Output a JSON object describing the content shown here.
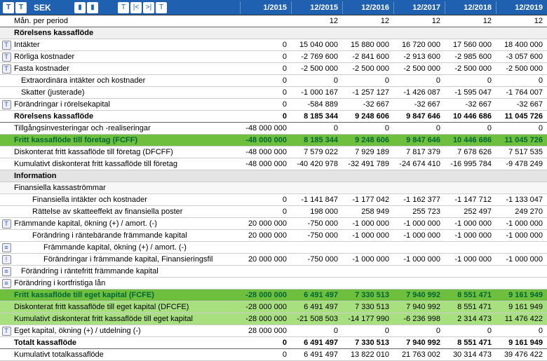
{
  "currency": "SEK",
  "header_icons_left": [
    "T",
    "T"
  ],
  "header_icons_mid_left": [
    "m",
    "m"
  ],
  "header_icons_mid": [
    "T",
    "|<",
    ">|",
    "T"
  ],
  "periods": [
    "1/2015",
    "12/2015",
    "12/2016",
    "12/2017",
    "12/2018",
    "12/2019"
  ],
  "rows": [
    {
      "cls": "mpp",
      "label": "Mån. per period",
      "vals": [
        "",
        "12",
        "12",
        "12",
        "12",
        "12"
      ]
    },
    {
      "cls": "section",
      "label": "Rörelsens kassaflöde",
      "vals": [
        "",
        "",
        "",
        "",
        "",
        ""
      ]
    },
    {
      "icon": "T",
      "label": "Intäkter",
      "vals": [
        "0",
        "15 040 000",
        "15 880 000",
        "16 720 000",
        "17 560 000",
        "18 400 000"
      ]
    },
    {
      "icon": "T",
      "label": "Rörliga kostnader",
      "vals": [
        "0",
        "-2 769 600",
        "-2 841 600",
        "-2 913 600",
        "-2 985 600",
        "-3 057 600"
      ]
    },
    {
      "icon": "T",
      "label": "Fasta kostnader",
      "vals": [
        "0",
        "-2 500 000",
        "-2 500 000",
        "-2 500 000",
        "-2 500 000",
        "-2 500 000"
      ]
    },
    {
      "label": "Extraordinära intäkter och kostnader",
      "indent": 1,
      "vals": [
        "0",
        "0",
        "0",
        "0",
        "0",
        "0"
      ]
    },
    {
      "label": "Skatter (justerade)",
      "indent": 1,
      "vals": [
        "0",
        "-1 000 167",
        "-1 257 127",
        "-1 426 087",
        "-1 595 047",
        "-1 764 007"
      ]
    },
    {
      "icon": "T",
      "label": "Förändringar i rörelsekapital",
      "vals": [
        "0",
        "-584 889",
        "-32 667",
        "-32 667",
        "-32 667",
        "-32 667"
      ]
    },
    {
      "cls": "subtotal",
      "label": "Rörelsens kassaflöde",
      "vals": [
        "0",
        "8 185 344",
        "9 248 606",
        "9 847 646",
        "10 446 686",
        "11 045 726"
      ]
    },
    {
      "label": "Tillgångsinvesteringar och -realiseringar",
      "vals": [
        "-48 000 000",
        "0",
        "0",
        "0",
        "0",
        "0"
      ]
    },
    {
      "cls": "fcff",
      "label": "Fritt kassaflöde  till företag (FCFF)",
      "vals": [
        "-48 000 000",
        "8 185 344",
        "9 248 606",
        "9 847 646",
        "10 446 686",
        "11 045 726"
      ]
    },
    {
      "label": "Diskonterat fritt kassaflöde  till företag (DFCFF)",
      "vals": [
        "-48 000 000",
        "7 579 022",
        "7 929 189",
        "7 817 379",
        "7 678 626",
        "7 517 535"
      ]
    },
    {
      "label": "Kumulativt diskonterat fritt kassaflöde till företag",
      "vals": [
        "-48 000 000",
        "-40 420 978",
        "-32 491 789",
        "-24 674 410",
        "-16 995 784",
        "-9 478 249"
      ]
    },
    {
      "cls": "info",
      "label": "Information",
      "vals": [
        "",
        "",
        "",
        "",
        "",
        ""
      ]
    },
    {
      "cls": "thin",
      "label": "Finansiella kassaströmmar",
      "vals": [
        "",
        "",
        "",
        "",
        "",
        ""
      ]
    },
    {
      "label": "Finansiella intäkter och kostnader",
      "indent": 2,
      "vals": [
        "0",
        "-1 141 847",
        "-1 177 042",
        "-1 162 377",
        "-1 147 712",
        "-1 133 047"
      ]
    },
    {
      "label": "Rättelse av skatteeffekt av finansiella poster",
      "indent": 2,
      "vals": [
        "0",
        "198 000",
        "258 949",
        "255 723",
        "252 497",
        "249 270"
      ]
    },
    {
      "icon": "T",
      "label": "Främmande kapital, ökning (+) / amort. (-)",
      "vals": [
        "20 000 000",
        "-750 000",
        "-1 000 000",
        "-1 000 000",
        "-1 000 000",
        "-1 000 000"
      ]
    },
    {
      "label": "Förändring i räntebärande främmande kapital",
      "indent": 2,
      "vals": [
        "20 000 000",
        "-750 000",
        "-1 000 000",
        "-1 000 000",
        "-1 000 000",
        "-1 000 000"
      ]
    },
    {
      "icon": "≡",
      "label": "Främmande kapital, ökning (+) / amort. (-)",
      "indent": 3,
      "vals": [
        "",
        "",
        "",
        "",
        "",
        ""
      ]
    },
    {
      "icon": "!",
      "label": "Förändringar i främmande kapital, Finansieringsfil",
      "indent": 3,
      "vals": [
        "20 000 000",
        "-750 000",
        "-1 000 000",
        "-1 000 000",
        "-1 000 000",
        "-1 000 000"
      ]
    },
    {
      "icon": "≡",
      "label": "Förändring i räntefritt främmande kapital",
      "indent": 1,
      "vals": [
        "",
        "",
        "",
        "",
        "",
        ""
      ]
    },
    {
      "icon": "≡",
      "label": "Förändring i kortfristiga lån",
      "vals": [
        "",
        "",
        "",
        "",
        "",
        ""
      ]
    },
    {
      "cls": "fcfe",
      "label": "Fritt kassaflöde till eget kapital (FCFE)",
      "vals": [
        "-28 000 000",
        "6 491 497",
        "7 330 513",
        "7 940 992",
        "8 551 471",
        "9 161 949"
      ]
    },
    {
      "cls": "dfcfe",
      "label": "Diskonterat fritt kassaflöde till eget kapital (DFCFE)",
      "vals": [
        "-28 000 000",
        "6 491 497",
        "7 330 513",
        "7 940 992",
        "8 551 471",
        "9 161 949"
      ]
    },
    {
      "cls": "dfcfe",
      "label": "Kumulativt diskonterat fritt kassaflöde till eget kapital",
      "vals": [
        "-28 000 000",
        "-21 508 503",
        "-14 177 990",
        "-6 236 998",
        "2 314 473",
        "11 476 422"
      ]
    },
    {
      "icon": "T",
      "label": "Eget kapital, ökning (+) / utdelning (-)",
      "vals": [
        "28 000 000",
        "0",
        "0",
        "0",
        "0",
        "0"
      ]
    },
    {
      "cls": "subtotal",
      "label": "Totalt kassaflöde",
      "vals": [
        "0",
        "6 491 497",
        "7 330 513",
        "7 940 992",
        "8 551 471",
        "9 161 949"
      ]
    },
    {
      "label": "Kumulativt totalkassaflöde",
      "vals": [
        "0",
        "6 491 497",
        "13 822 010",
        "21 763 002",
        "30 314 473",
        "39 476 422"
      ]
    }
  ]
}
